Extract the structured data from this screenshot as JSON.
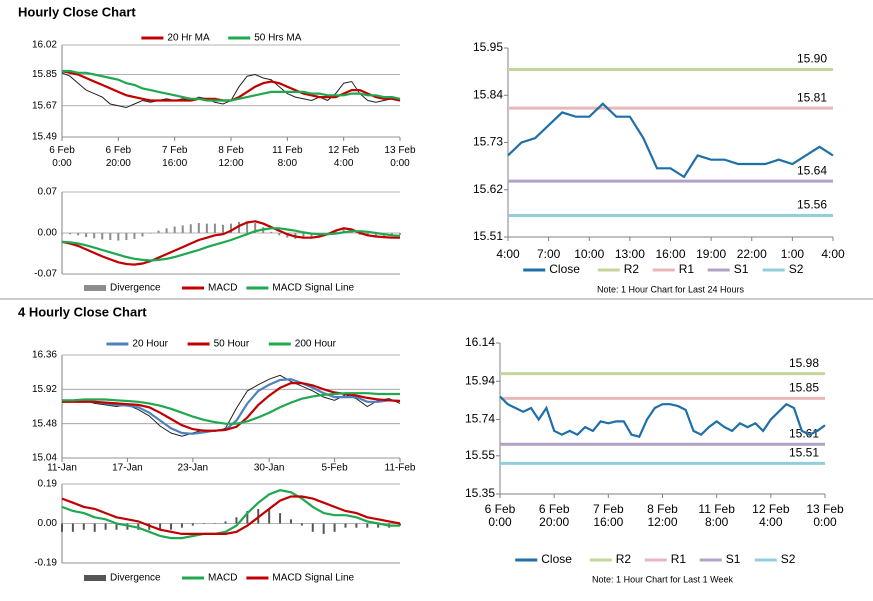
{
  "headings": [
    "Hourly Close Chart",
    "4 Hourly Close Chart"
  ],
  "chart_data": [
    {
      "type": "line",
      "legend": "top",
      "grid": true,
      "categories": [
        "6 Feb\n0:00",
        null,
        null,
        null,
        null,
        null,
        null,
        "6 Feb\n20:00",
        null,
        null,
        null,
        null,
        null,
        null,
        "7 Feb\n16:00",
        null,
        null,
        null,
        null,
        null,
        null,
        "8 Feb\n12:00",
        null,
        null,
        null,
        null,
        null,
        null,
        "11 Feb\n8:00",
        null,
        null,
        null,
        null,
        null,
        null,
        "12 Feb\n4:00",
        null,
        null,
        null,
        null,
        null,
        null,
        "13 Feb\n0:00"
      ],
      "ylim": [
        15.49,
        16.02
      ],
      "yticks": [
        15.49,
        15.67,
        15.85,
        16.02
      ],
      "series": [
        {
          "color": "#222222",
          "values": [
            15.86,
            15.84,
            15.8,
            15.76,
            15.74,
            15.72,
            15.68,
            15.67,
            15.66,
            15.68,
            15.7,
            15.69,
            15.7,
            15.71,
            15.7,
            15.71,
            15.7,
            15.72,
            15.71,
            15.69,
            15.68,
            15.7,
            15.78,
            15.84,
            15.85,
            15.83,
            15.82,
            15.78,
            15.74,
            15.72,
            15.71,
            15.7,
            15.72,
            15.7,
            15.74,
            15.8,
            15.81,
            15.74,
            15.7,
            15.69,
            15.7,
            15.71,
            15.7
          ]
        },
        {
          "name": "20 Hr MA",
          "color": "#c00000",
          "values": [
            15.87,
            15.86,
            15.85,
            15.83,
            15.81,
            15.79,
            15.77,
            15.75,
            15.73,
            15.72,
            15.71,
            15.7,
            15.7,
            15.7,
            15.7,
            15.7,
            15.7,
            15.71,
            15.71,
            15.71,
            15.7,
            15.7,
            15.72,
            15.75,
            15.78,
            15.8,
            15.81,
            15.8,
            15.78,
            15.76,
            15.74,
            15.73,
            15.72,
            15.72,
            15.72,
            15.74,
            15.76,
            15.76,
            15.74,
            15.72,
            15.71,
            15.71,
            15.7
          ]
        },
        {
          "name": "50 Hrs MA",
          "color": "#1fa84f",
          "values": [
            15.87,
            15.87,
            15.86,
            15.86,
            15.85,
            15.84,
            15.83,
            15.82,
            15.8,
            15.79,
            15.77,
            15.76,
            15.75,
            15.74,
            15.73,
            15.72,
            15.71,
            15.71,
            15.7,
            15.7,
            15.7,
            15.7,
            15.71,
            15.72,
            15.73,
            15.74,
            15.75,
            15.75,
            15.75,
            15.75,
            15.75,
            15.74,
            15.74,
            15.73,
            15.73,
            15.73,
            15.74,
            15.74,
            15.73,
            15.73,
            15.72,
            15.72,
            15.71
          ]
        }
      ]
    },
    {
      "type": "combo",
      "legend": "bottom",
      "grid": true,
      "ylim": [
        -0.07,
        0.07
      ],
      "yticks": [
        -0.07,
        {
          "value": 0,
          "label": "0.00"
        },
        0.07
      ],
      "series": [
        {
          "name": "Divergence",
          "color": "#8c8c8c",
          "style": "bar",
          "values": [
            0,
            -0.002,
            -0.004,
            -0.007,
            -0.009,
            -0.011,
            -0.012,
            -0.013,
            -0.012,
            -0.01,
            -0.006,
            -0.001,
            0.004,
            0.008,
            0.011,
            0.013,
            0.015,
            0.017,
            0.016,
            0.016,
            0.014,
            0.016,
            0.019,
            0.02,
            0.017,
            0.01,
            0.002,
            -0.004,
            -0.008,
            -0.01,
            -0.009,
            -0.007,
            -0.004,
            0.0,
            0.005,
            0.007,
            0.003,
            -0.003,
            -0.006,
            -0.006,
            -0.005,
            -0.004,
            -0.003
          ]
        },
        {
          "name": "MACD",
          "color": "#c00000",
          "values": [
            -0.015,
            -0.018,
            -0.022,
            -0.028,
            -0.034,
            -0.04,
            -0.045,
            -0.05,
            -0.053,
            -0.054,
            -0.052,
            -0.048,
            -0.042,
            -0.036,
            -0.03,
            -0.024,
            -0.018,
            -0.012,
            -0.008,
            -0.004,
            -0.002,
            0.004,
            0.012,
            0.018,
            0.02,
            0.016,
            0.01,
            0.004,
            -0.002,
            -0.006,
            -0.008,
            -0.008,
            -0.006,
            -0.002,
            0.004,
            0.008,
            0.006,
            0.0,
            -0.004,
            -0.006,
            -0.007,
            -0.008,
            -0.008
          ]
        },
        {
          "name": "MACD Signal Line",
          "color": "#1fa84f",
          "values": [
            -0.015,
            -0.016,
            -0.018,
            -0.021,
            -0.025,
            -0.029,
            -0.033,
            -0.037,
            -0.041,
            -0.044,
            -0.046,
            -0.047,
            -0.046,
            -0.044,
            -0.041,
            -0.037,
            -0.033,
            -0.029,
            -0.024,
            -0.02,
            -0.016,
            -0.012,
            -0.007,
            -0.002,
            0.003,
            0.006,
            0.008,
            0.008,
            0.006,
            0.004,
            0.001,
            -0.001,
            -0.002,
            -0.002,
            -0.001,
            0.001,
            0.003,
            0.003,
            0.002,
            0.0,
            -0.002,
            -0.004,
            -0.005
          ]
        }
      ]
    },
    {
      "type": "line",
      "legend": "bottom",
      "grid": false,
      "note": "Note: 1 Hour Chart for Last 24 Hours",
      "categories": [
        "4:00",
        null,
        null,
        "7:00",
        null,
        null,
        "10:00",
        null,
        null,
        "13:00",
        null,
        null,
        "16:00",
        null,
        null,
        "19:00",
        null,
        null,
        "22:00",
        null,
        null,
        "1:00",
        null,
        null,
        "4:00"
      ],
      "ylim": [
        15.51,
        15.95
      ],
      "yticks": [
        15.51,
        15.62,
        15.73,
        15.84,
        15.95
      ],
      "series": [
        {
          "name": "Close",
          "color": "#1f6fa8",
          "values": [
            15.7,
            15.73,
            15.74,
            15.77,
            15.8,
            15.79,
            15.79,
            15.82,
            15.79,
            15.79,
            15.74,
            15.67,
            15.67,
            15.65,
            15.7,
            15.69,
            15.69,
            15.68,
            15.68,
            15.68,
            15.69,
            15.68,
            15.7,
            15.72,
            15.7
          ]
        }
      ],
      "levels": [
        {
          "name": "R2",
          "color": "#c3d69b",
          "value": 15.9,
          "value_label": "15.90"
        },
        {
          "name": "R1",
          "color": "#e6b9b8",
          "value": 15.81
        },
        {
          "name": "S1",
          "color": "#b3a2c7",
          "value": 15.64
        },
        {
          "name": "S2",
          "color": "#92cddc",
          "value": 15.56
        }
      ]
    },
    {
      "type": "line",
      "legend": "top",
      "grid": true,
      "categories": [
        "11-Jan",
        null,
        null,
        null,
        null,
        null,
        "17-Jan",
        null,
        null,
        null,
        null,
        null,
        "23-Jan",
        null,
        null,
        null,
        null,
        null,
        null,
        "30-Jan",
        null,
        null,
        null,
        null,
        null,
        "5-Feb",
        null,
        null,
        null,
        null,
        null,
        "11-Feb"
      ],
      "ylim": [
        15.04,
        16.36
      ],
      "yticks": [
        15.04,
        15.48,
        15.92,
        16.36
      ],
      "series": [
        {
          "color": "#222222",
          "values": [
            15.78,
            15.76,
            15.78,
            15.74,
            15.72,
            15.7,
            15.72,
            15.66,
            15.58,
            15.45,
            15.36,
            15.32,
            15.36,
            15.4,
            15.38,
            15.42,
            15.68,
            15.9,
            15.98,
            16.05,
            16.1,
            16.02,
            15.96,
            15.9,
            15.82,
            15.78,
            15.85,
            15.8,
            15.7,
            15.78,
            15.8,
            15.74
          ]
        },
        {
          "name": "20 Hour",
          "color": "#4f81bd",
          "values": [
            15.78,
            15.77,
            15.77,
            15.76,
            15.74,
            15.72,
            15.71,
            15.69,
            15.62,
            15.52,
            15.42,
            15.36,
            15.35,
            15.37,
            15.39,
            15.4,
            15.52,
            15.74,
            15.9,
            15.98,
            16.04,
            16.05,
            16.0,
            15.94,
            15.87,
            15.82,
            15.82,
            15.82,
            15.76,
            15.76,
            15.78,
            15.77
          ]
        },
        {
          "name": "50 Hour",
          "color": "#c00000",
          "values": [
            15.76,
            15.76,
            15.76,
            15.76,
            15.75,
            15.74,
            15.73,
            15.72,
            15.69,
            15.62,
            15.54,
            15.46,
            15.41,
            15.39,
            15.39,
            15.4,
            15.44,
            15.56,
            15.72,
            15.84,
            15.94,
            16.0,
            16.0,
            15.97,
            15.92,
            15.88,
            15.86,
            15.84,
            15.81,
            15.79,
            15.78,
            15.77
          ]
        },
        {
          "name": "200 Hour",
          "color": "#1fa84f",
          "values": [
            15.78,
            15.78,
            15.79,
            15.79,
            15.79,
            15.78,
            15.77,
            15.76,
            15.74,
            15.71,
            15.67,
            15.62,
            15.57,
            15.53,
            15.5,
            15.48,
            15.48,
            15.51,
            15.56,
            15.62,
            15.69,
            15.75,
            15.8,
            15.83,
            15.85,
            15.86,
            15.87,
            15.87,
            15.87,
            15.86,
            15.86,
            15.86
          ]
        }
      ]
    },
    {
      "type": "combo",
      "legend": "bottom",
      "grid": true,
      "ylim": [
        -0.19,
        0.19
      ],
      "yticks": [
        -0.19,
        {
          "value": 0,
          "label": "0.00"
        },
        0.19
      ],
      "series": [
        {
          "name": "Divergence",
          "color": "#555555",
          "style": "bar",
          "values": [
            -0.04,
            -0.04,
            -0.03,
            -0.04,
            -0.03,
            -0.03,
            -0.03,
            -0.03,
            -0.03,
            -0.03,
            -0.03,
            -0.02,
            -0.01,
            0.0,
            0.0,
            0.01,
            0.03,
            0.06,
            0.07,
            0.07,
            0.05,
            0.02,
            -0.01,
            -0.04,
            -0.05,
            -0.04,
            -0.02,
            -0.02,
            -0.02,
            -0.02,
            -0.02,
            -0.01
          ]
        },
        {
          "name": "MACD",
          "color": "#1fa84f",
          "values": [
            0.08,
            0.06,
            0.05,
            0.03,
            0.02,
            0.0,
            -0.01,
            -0.02,
            -0.04,
            -0.06,
            -0.07,
            -0.07,
            -0.06,
            -0.05,
            -0.05,
            -0.04,
            -0.01,
            0.05,
            0.1,
            0.14,
            0.16,
            0.15,
            0.12,
            0.08,
            0.05,
            0.04,
            0.04,
            0.03,
            0.01,
            0.0,
            -0.01,
            -0.01
          ]
        },
        {
          "name": "MACD Signal Line",
          "color": "#c00000",
          "values": [
            0.12,
            0.1,
            0.08,
            0.07,
            0.05,
            0.03,
            0.02,
            0.01,
            -0.01,
            -0.03,
            -0.04,
            -0.05,
            -0.05,
            -0.05,
            -0.05,
            -0.05,
            -0.04,
            -0.01,
            0.03,
            0.07,
            0.11,
            0.13,
            0.13,
            0.12,
            0.1,
            0.08,
            0.06,
            0.05,
            0.03,
            0.02,
            0.01,
            0.0
          ]
        }
      ]
    },
    {
      "type": "line",
      "legend": "bottom",
      "grid": false,
      "note": "Note: 1 Hour Chart for Last 1 Week",
      "categories": [
        "6 Feb\n0:00",
        null,
        null,
        null,
        null,
        null,
        null,
        "6 Feb\n20:00",
        null,
        null,
        null,
        null,
        null,
        null,
        "7 Feb\n16:00",
        null,
        null,
        null,
        null,
        null,
        null,
        "8 Feb\n12:00",
        null,
        null,
        null,
        null,
        null,
        null,
        "11 Feb\n8:00",
        null,
        null,
        null,
        null,
        null,
        null,
        "12 Feb\n4:00",
        null,
        null,
        null,
        null,
        null,
        null,
        "13 Feb\n0:00"
      ],
      "ylim": [
        15.35,
        16.14
      ],
      "yticks": [
        15.35,
        15.55,
        15.74,
        15.94,
        16.14
      ],
      "series": [
        {
          "name": "Close",
          "color": "#1f6fa8",
          "values": [
            15.86,
            15.82,
            15.8,
            15.78,
            15.8,
            15.74,
            15.8,
            15.68,
            15.66,
            15.68,
            15.66,
            15.7,
            15.68,
            15.73,
            15.72,
            15.73,
            15.73,
            15.66,
            15.65,
            15.74,
            15.8,
            15.82,
            15.82,
            15.81,
            15.79,
            15.68,
            15.66,
            15.7,
            15.73,
            15.7,
            15.68,
            15.72,
            15.7,
            15.72,
            15.68,
            15.74,
            15.78,
            15.82,
            15.8,
            15.68,
            15.66,
            15.68,
            15.71
          ]
        }
      ],
      "levels": [
        {
          "name": "R2",
          "color": "#c3d69b",
          "value": 15.98
        },
        {
          "name": "R1",
          "color": "#e6b9b8",
          "value": 15.85
        },
        {
          "name": "S1",
          "color": "#b3a2c7",
          "value": 15.61
        },
        {
          "name": "S2",
          "color": "#92cddc",
          "value": 15.51
        }
      ]
    }
  ]
}
